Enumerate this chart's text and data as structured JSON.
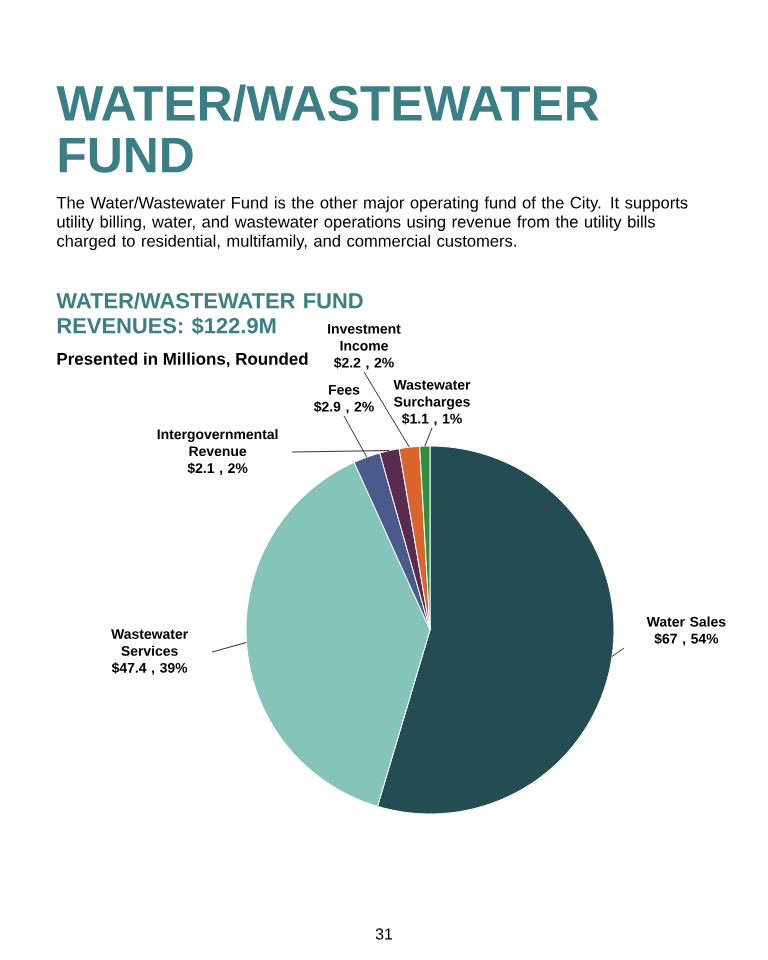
{
  "chart_data": {
    "type": "pie",
    "title": "WATER/WASTEWATER FUND",
    "subtitle": "WATER/WASTEWATER FUND REVENUES: $122.9M",
    "annotations": [
      "The Water/Wastewater Fund is the other major operating fund of the City. It supports utility billing, water, and wastewater operations using revenue from the utility bills charged to residential, multifamily, and commercial customers.",
      "Presented in Millions, Rounded",
      "31"
    ],
    "categories": [
      "Water Sales",
      "Wastewater Services",
      "Fees",
      "Intergovernmental Revenue",
      "Investment Income",
      "Wastewater Surcharges"
    ],
    "values": [
      67,
      47.4,
      2.9,
      2.1,
      2.2,
      1.1
    ],
    "value_labels": [
      "$67 , 54%",
      "$47.4 , 39%",
      "$2.9 , 2%",
      "$2.1 , 2%",
      "$2.2 , 2%",
      "$1.1 , 1%"
    ],
    "colors": [
      "#234d52",
      "#85c4b9",
      "#4b5a8c",
      "#5b2a4f",
      "#d9652a",
      "#2f8f3f"
    ]
  }
}
